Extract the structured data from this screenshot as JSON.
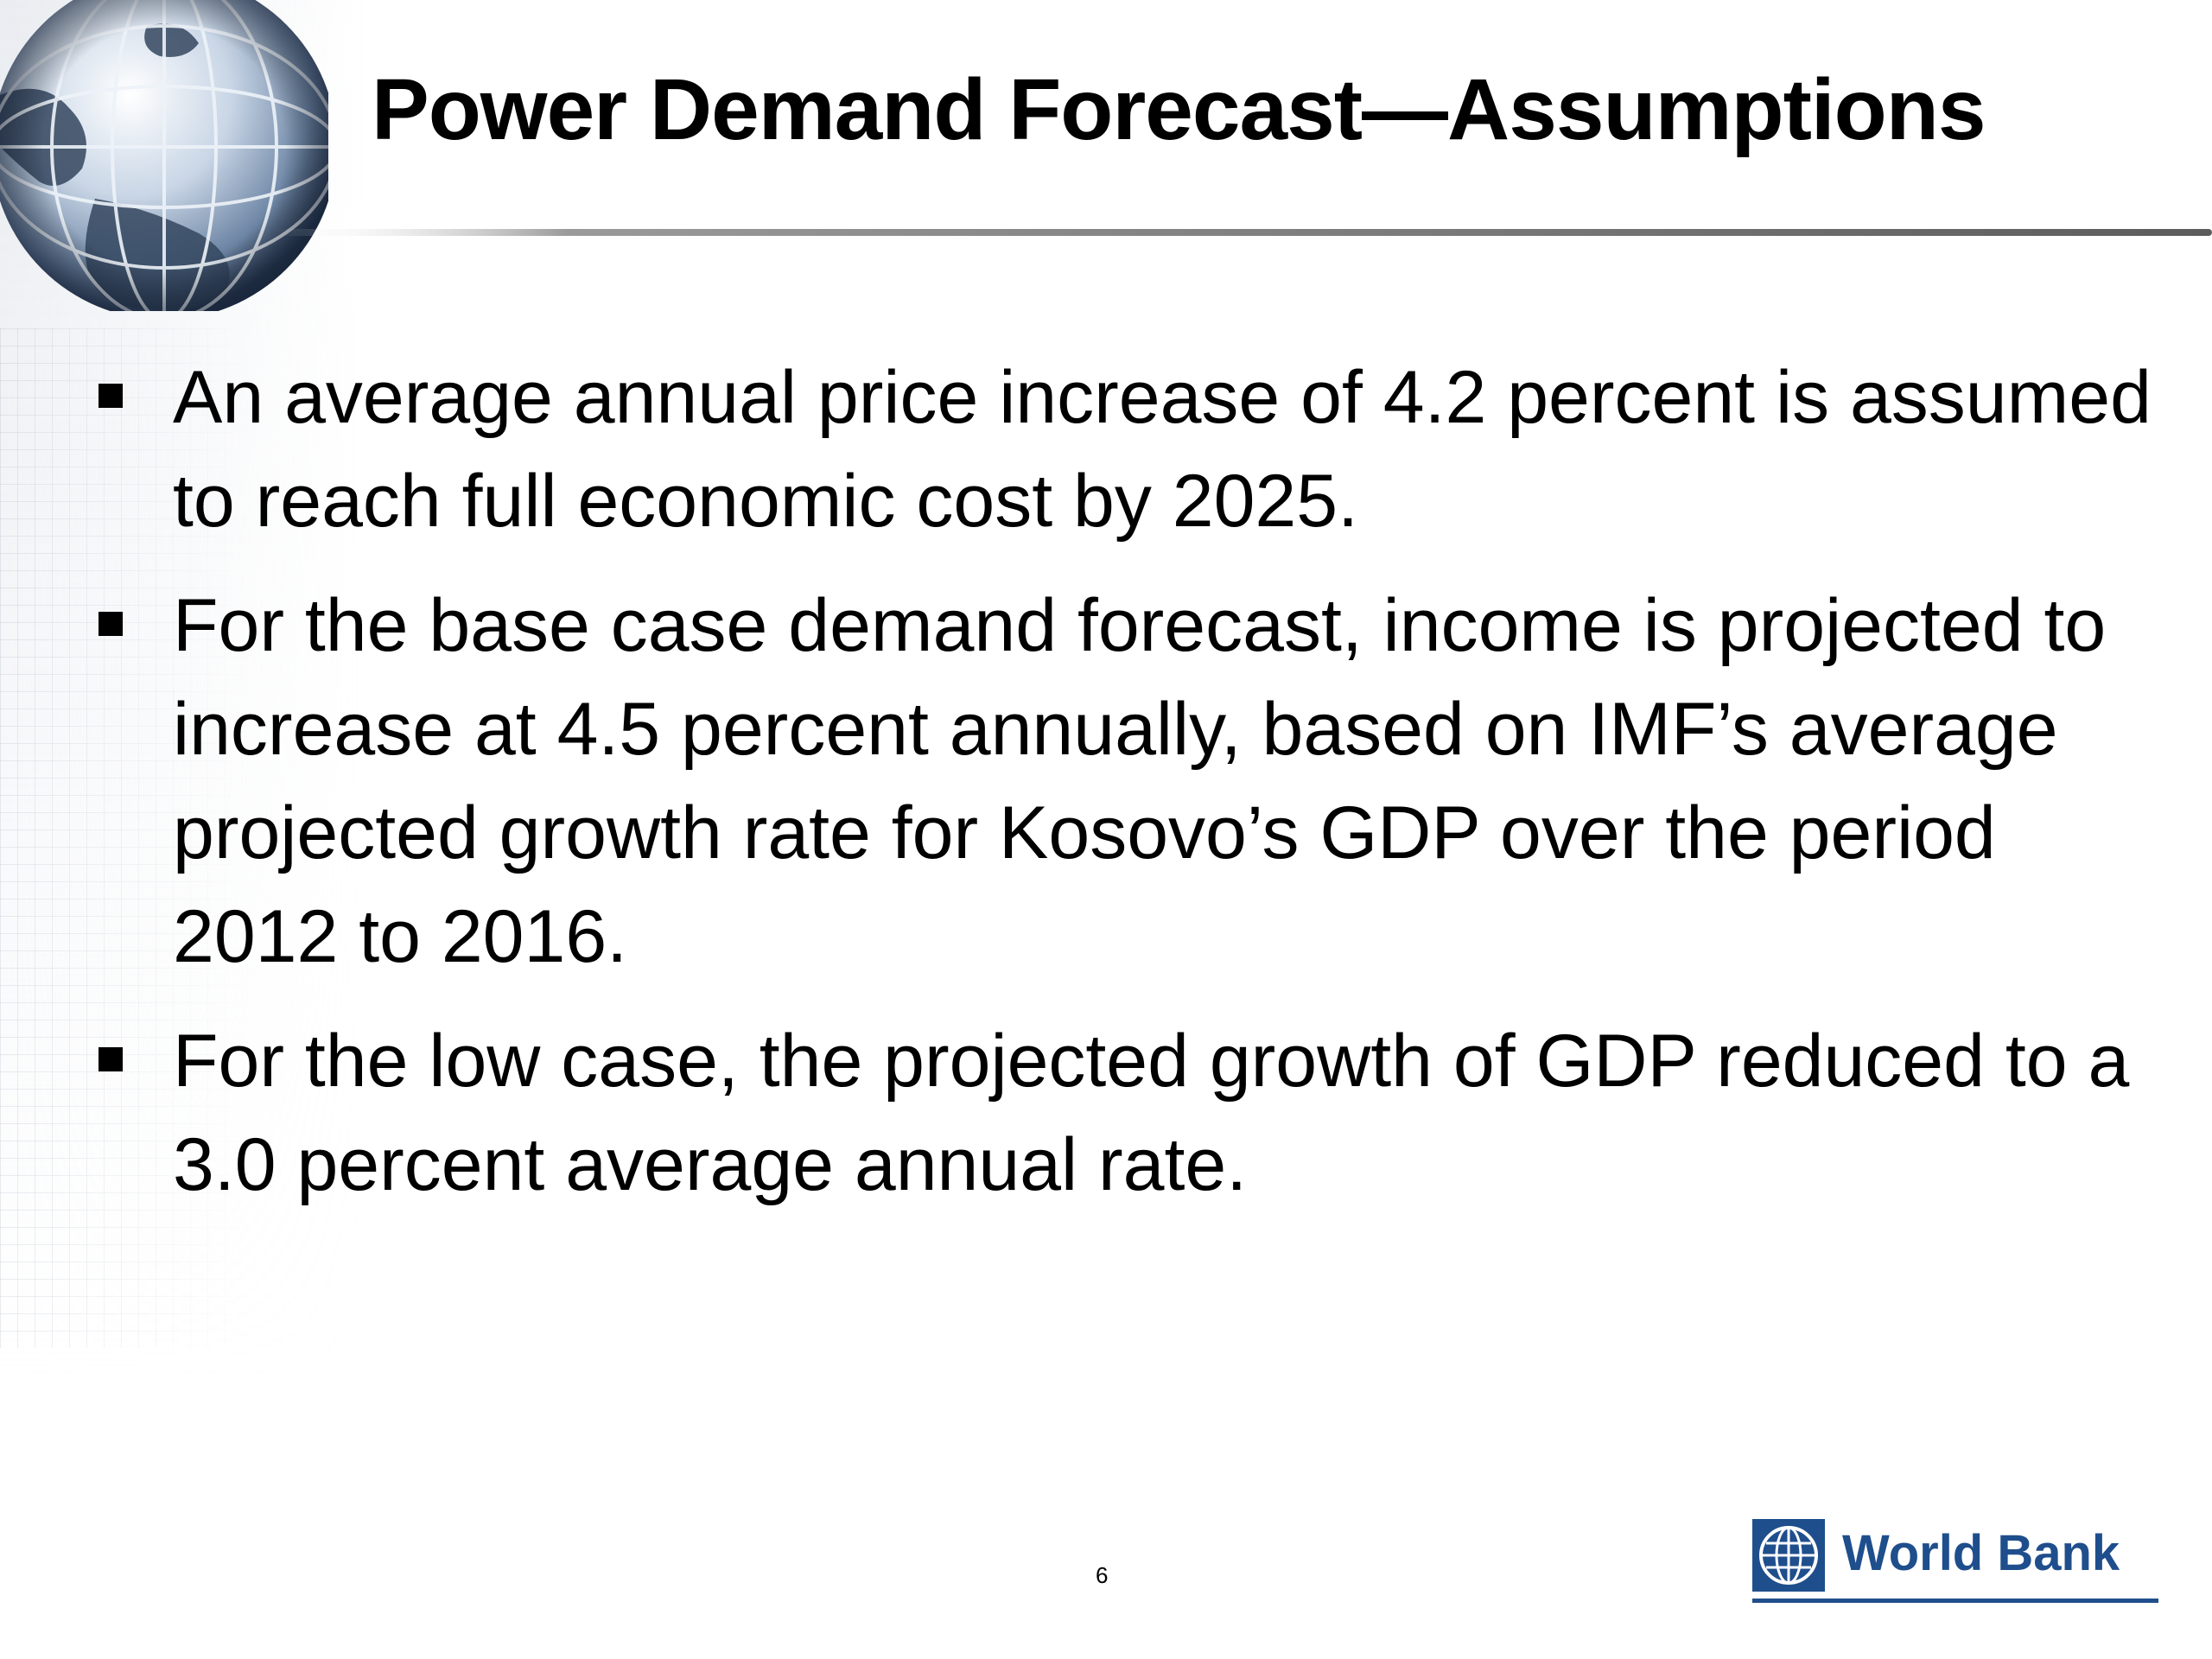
{
  "slide": {
    "title": "Power Demand Forecast—Assumptions",
    "bullets": [
      "An average annual price increase of 4.2 percent is assumed to reach full economic cost by 2025.",
      "For the base case demand forecast, income is projected to increase at 4.5 percent annually, based on IMF’s average projected growth rate for Kosovo’s GDP over the period 2012 to 2016.",
      "For the low case, the projected growth of GDP  reduced to a 3.0 percent average annual rate."
    ],
    "page_number": "6"
  },
  "branding": {
    "logo_text": "World Bank",
    "logo_color": "#1f4e8c",
    "decoration_icon": "globe-icon"
  }
}
